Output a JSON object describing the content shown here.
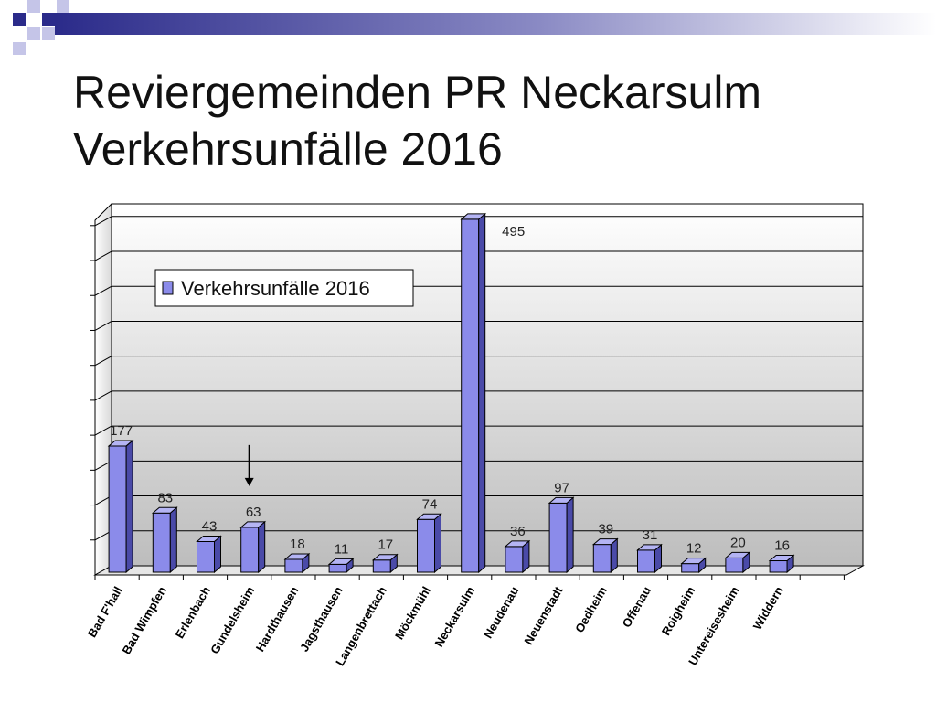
{
  "slide": {
    "title_line1": "Reviergemeinden PR Neckarsulm",
    "title_line2": "Verkehrsunfälle 2016"
  },
  "colors": {
    "bar_front": "#8b8bea",
    "bar_side": "#4a4aa8",
    "bar_top": "#b4b4f4",
    "bar_outline": "#000000",
    "wall_top": "#ffffff",
    "wall_bottom": "#bdbdbd",
    "header_square_dark": "#2b2b8a",
    "header_square_light": "#c5c5e8"
  },
  "chart_data": {
    "type": "bar",
    "title": "",
    "xlabel": "",
    "ylabel": "",
    "ylim": [
      0,
      500
    ],
    "grid": true,
    "three_d": true,
    "legend_placement": "top-left",
    "categories": [
      "Bad F'hall",
      "Bad Wimpfen",
      "Erlenbach",
      "Gundelsheim",
      "Hardthausen",
      "Jagsthausen",
      "Langenbrettach",
      "Möckmühl",
      "Neckarsulm",
      "Neudenau",
      "Neuenstadt",
      "Oedheim",
      "Offenau",
      "Roigheim",
      "Untereisesheim",
      "Widdern"
    ],
    "series": [
      {
        "name": "Verkehrsunfälle 2016",
        "values": [
          177,
          83,
          43,
          63,
          18,
          11,
          17,
          74,
          495,
          36,
          97,
          39,
          31,
          12,
          20,
          16
        ]
      }
    ],
    "annotations": [
      {
        "type": "arrow",
        "points_to": "Gundelsheim",
        "direction": "down"
      }
    ]
  }
}
